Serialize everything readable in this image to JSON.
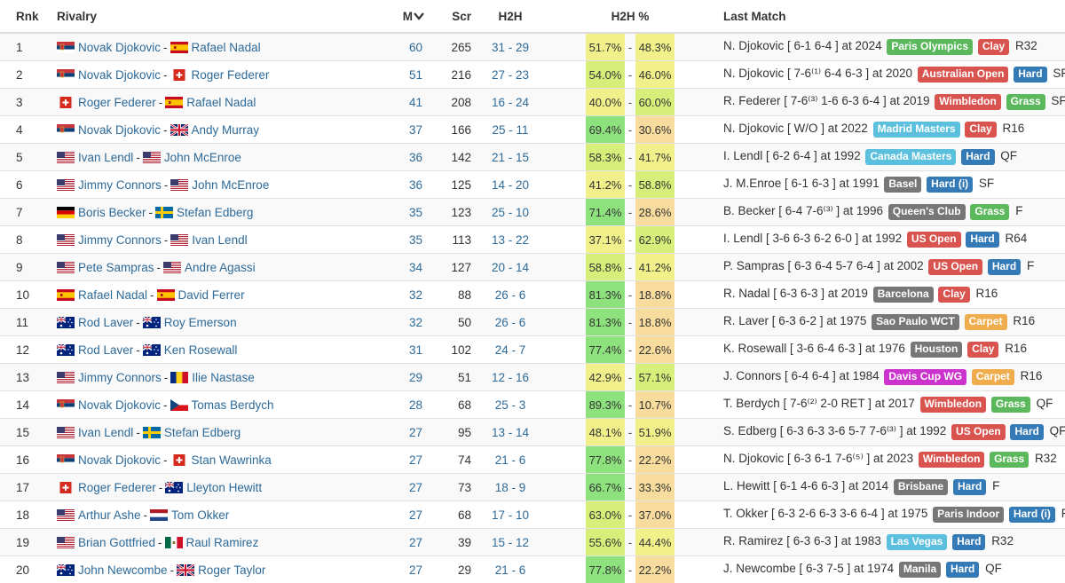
{
  "headers": {
    "rank": "Rnk",
    "rivalry": "Rivalry",
    "matches": "M",
    "score": "Scr",
    "h2h": "H2H",
    "h2h_pct": "H2H %",
    "last_match": "Last Match"
  },
  "colors": {
    "link": "#2d6a99",
    "pct_high": "#8ee27e",
    "pct_mid": "#d7ef7a",
    "pct_even": "#f1f08a",
    "pct_low": "#f8dc9e",
    "surface_clay": "#d9534f",
    "surface_hard": "#337ab7",
    "surface_grass": "#5cb85c",
    "surface_carpet": "#f0ad4e",
    "event_grand_slam": "#d9534f",
    "event_masters": "#5bc0de",
    "event_olympics": "#5cb85c",
    "event_atp500": "#777777",
    "event_davis_cup": "#cc33cc"
  },
  "rows": [
    {
      "rank": "1",
      "p1": "Novak Djokovic",
      "f1": "srb",
      "p2": "Rafael Nadal",
      "f2": "esp",
      "m": "60",
      "scr": "265",
      "h2h": "31 - 29",
      "pct1": 51.7,
      "pct2": 48.3,
      "last": {
        "pre": "N. Djokovic [ 6-1 6-4 ] at 2024",
        "event": "Paris Olympics",
        "event_color": "#5cb85c",
        "surface": "Clay",
        "surface_color": "#d9534f",
        "round": "R32"
      }
    },
    {
      "rank": "2",
      "p1": "Novak Djokovic",
      "f1": "srb",
      "p2": "Roger Federer",
      "f2": "sui",
      "m": "51",
      "scr": "216",
      "h2h": "27 - 23",
      "pct1": 54.0,
      "pct2": 46.0,
      "last": {
        "pre": "N. Djokovic [ 7-6⁽¹⁾ 6-4 6-3 ] at 2020",
        "event": "Australian Open",
        "event_color": "#d9534f",
        "surface": "Hard",
        "surface_color": "#337ab7",
        "round": "SF"
      }
    },
    {
      "rank": "3",
      "p1": "Roger Federer",
      "f1": "sui",
      "p2": "Rafael Nadal",
      "f2": "esp",
      "m": "41",
      "scr": "208",
      "h2h": "16 - 24",
      "pct1": 40.0,
      "pct2": 60.0,
      "last": {
        "pre": "R. Federer [ 7-6⁽³⁾ 1-6 6-3 6-4 ] at 2019",
        "event": "Wimbledon",
        "event_color": "#d9534f",
        "surface": "Grass",
        "surface_color": "#5cb85c",
        "round": "SF"
      }
    },
    {
      "rank": "4",
      "p1": "Novak Djokovic",
      "f1": "srb",
      "p2": "Andy Murray",
      "f2": "gbr",
      "m": "37",
      "scr": "166",
      "h2h": "25 - 11",
      "pct1": 69.4,
      "pct2": 30.6,
      "last": {
        "pre": "N. Djokovic [ W/O ] at 2022",
        "event": "Madrid Masters",
        "event_color": "#5bc0de",
        "surface": "Clay",
        "surface_color": "#d9534f",
        "round": "R16"
      }
    },
    {
      "rank": "5",
      "p1": "Ivan Lendl",
      "f1": "usa",
      "p2": "John McEnroe",
      "f2": "usa",
      "m": "36",
      "scr": "142",
      "h2h": "21 - 15",
      "pct1": 58.3,
      "pct2": 41.7,
      "last": {
        "pre": "I. Lendl [ 6-2 6-4 ] at 1992",
        "event": "Canada Masters",
        "event_color": "#5bc0de",
        "surface": "Hard",
        "surface_color": "#337ab7",
        "round": "QF"
      }
    },
    {
      "rank": "6",
      "p1": "Jimmy Connors",
      "f1": "usa",
      "p2": "John McEnroe",
      "f2": "usa",
      "m": "36",
      "scr": "125",
      "h2h": "14 - 20",
      "pct1": 41.2,
      "pct2": 58.8,
      "last": {
        "pre": "J. M.Enroe [ 6-1 6-3 ] at 1991",
        "event": "Basel",
        "event_color": "#777777",
        "surface": "Hard (i)",
        "surface_color": "#337ab7",
        "round": "SF"
      }
    },
    {
      "rank": "7",
      "p1": "Boris Becker",
      "f1": "ger",
      "p2": "Stefan Edberg",
      "f2": "swe",
      "m": "35",
      "scr": "123",
      "h2h": "25 - 10",
      "pct1": 71.4,
      "pct2": 28.6,
      "last": {
        "pre": "B. Becker [ 6-4 7-6⁽³⁾ ] at 1996",
        "event": "Queen's Club",
        "event_color": "#777777",
        "surface": "Grass",
        "surface_color": "#5cb85c",
        "round": "F"
      }
    },
    {
      "rank": "8",
      "p1": "Jimmy Connors",
      "f1": "usa",
      "p2": "Ivan Lendl",
      "f2": "usa",
      "m": "35",
      "scr": "113",
      "h2h": "13 - 22",
      "pct1": 37.1,
      "pct2": 62.9,
      "last": {
        "pre": "I. Lendl [ 3-6 6-3 6-2 6-0 ] at 1992",
        "event": "US Open",
        "event_color": "#d9534f",
        "surface": "Hard",
        "surface_color": "#337ab7",
        "round": "R64"
      }
    },
    {
      "rank": "9",
      "p1": "Pete Sampras",
      "f1": "usa",
      "p2": "Andre Agassi",
      "f2": "usa",
      "m": "34",
      "scr": "127",
      "h2h": "20 - 14",
      "pct1": 58.8,
      "pct2": 41.2,
      "last": {
        "pre": "P. Sampras [ 6-3 6-4 5-7 6-4 ] at 2002",
        "event": "US Open",
        "event_color": "#d9534f",
        "surface": "Hard",
        "surface_color": "#337ab7",
        "round": "F"
      }
    },
    {
      "rank": "10",
      "p1": "Rafael Nadal",
      "f1": "esp",
      "p2": "David Ferrer",
      "f2": "esp",
      "m": "32",
      "scr": "88",
      "h2h": "26 - 6",
      "pct1": 81.3,
      "pct2": 18.8,
      "last": {
        "pre": "R. Nadal [ 6-3 6-3 ] at 2019",
        "event": "Barcelona",
        "event_color": "#777777",
        "surface": "Clay",
        "surface_color": "#d9534f",
        "round": "R16"
      }
    },
    {
      "rank": "11",
      "p1": "Rod Laver",
      "f1": "aus",
      "p2": "Roy Emerson",
      "f2": "aus",
      "m": "32",
      "scr": "50",
      "h2h": "26 - 6",
      "pct1": 81.3,
      "pct2": 18.8,
      "last": {
        "pre": "R. Laver [ 6-3 6-2 ] at 1975",
        "event": "Sao Paulo WCT",
        "event_color": "#777777",
        "surface": "Carpet",
        "surface_color": "#f0ad4e",
        "round": "R16"
      }
    },
    {
      "rank": "12",
      "p1": "Rod Laver",
      "f1": "aus",
      "p2": "Ken Rosewall",
      "f2": "aus",
      "m": "31",
      "scr": "102",
      "h2h": "24 - 7",
      "pct1": 77.4,
      "pct2": 22.6,
      "last": {
        "pre": "K. Rosewall [ 3-6 6-4 6-3 ] at 1976",
        "event": "Houston",
        "event_color": "#777777",
        "surface": "Clay",
        "surface_color": "#d9534f",
        "round": "R16"
      }
    },
    {
      "rank": "13",
      "p1": "Jimmy Connors",
      "f1": "usa",
      "p2": "Ilie Nastase",
      "f2": "rou",
      "m": "29",
      "scr": "51",
      "h2h": "12 - 16",
      "pct1": 42.9,
      "pct2": 57.1,
      "last": {
        "pre": "J. Connors [ 6-4 6-4 ] at 1984",
        "event": "Davis Cup WG",
        "event_color": "#cc33cc",
        "surface": "Carpet",
        "surface_color": "#f0ad4e",
        "round": "R16"
      }
    },
    {
      "rank": "14",
      "p1": "Novak Djokovic",
      "f1": "srb",
      "p2": "Tomas Berdych",
      "f2": "cze",
      "m": "28",
      "scr": "68",
      "h2h": "25 - 3",
      "pct1": 89.3,
      "pct2": 10.7,
      "last": {
        "pre": "T. Berdych [ 7-6⁽²⁾ 2-0 RET ] at 2017",
        "event": "Wimbledon",
        "event_color": "#d9534f",
        "surface": "Grass",
        "surface_color": "#5cb85c",
        "round": "QF"
      }
    },
    {
      "rank": "15",
      "p1": "Ivan Lendl",
      "f1": "usa",
      "p2": "Stefan Edberg",
      "f2": "swe",
      "m": "27",
      "scr": "95",
      "h2h": "13 - 14",
      "pct1": 48.1,
      "pct2": 51.9,
      "last": {
        "pre": "S. Edberg [ 6-3 6-3 3-6 5-7 7-6⁽³⁾ ] at 1992",
        "event": "US Open",
        "event_color": "#d9534f",
        "surface": "Hard",
        "surface_color": "#337ab7",
        "round": "QF"
      }
    },
    {
      "rank": "16",
      "p1": "Novak Djokovic",
      "f1": "srb",
      "p2": "Stan Wawrinka",
      "f2": "sui",
      "m": "27",
      "scr": "74",
      "h2h": "21 - 6",
      "pct1": 77.8,
      "pct2": 22.2,
      "last": {
        "pre": "N. Djokovic [ 6-3 6-1 7-6⁽⁵⁾ ] at 2023",
        "event": "Wimbledon",
        "event_color": "#d9534f",
        "surface": "Grass",
        "surface_color": "#5cb85c",
        "round": "R32"
      }
    },
    {
      "rank": "17",
      "p1": "Roger Federer",
      "f1": "sui",
      "p2": "Lleyton Hewitt",
      "f2": "aus",
      "m": "27",
      "scr": "73",
      "h2h": "18 - 9",
      "pct1": 66.7,
      "pct2": 33.3,
      "last": {
        "pre": "L. Hewitt [ 6-1 4-6 6-3 ] at 2014",
        "event": "Brisbane",
        "event_color": "#777777",
        "surface": "Hard",
        "surface_color": "#337ab7",
        "round": "F"
      }
    },
    {
      "rank": "18",
      "p1": "Arthur Ashe",
      "f1": "usa",
      "p2": "Tom Okker",
      "f2": "ned",
      "m": "27",
      "scr": "68",
      "h2h": "17 - 10",
      "pct1": 63.0,
      "pct2": 37.0,
      "last": {
        "pre": "T. Okker [ 6-3 2-6 6-3 3-6 6-4 ] at 1975",
        "event": "Paris Indoor",
        "event_color": "#777777",
        "surface": "Hard (i)",
        "surface_color": "#337ab7",
        "round": "F"
      }
    },
    {
      "rank": "19",
      "p1": "Brian Gottfried",
      "f1": "usa",
      "p2": "Raul Ramirez",
      "f2": "mex",
      "m": "27",
      "scr": "39",
      "h2h": "15 - 12",
      "pct1": 55.6,
      "pct2": 44.4,
      "last": {
        "pre": "R. Ramirez [ 6-3 6-3 ] at 1983",
        "event": "Las Vegas",
        "event_color": "#5bc0de",
        "surface": "Hard",
        "surface_color": "#337ab7",
        "round": "R32"
      }
    },
    {
      "rank": "20",
      "p1": "John Newcombe",
      "f1": "aus",
      "p2": "Roger Taylor",
      "f2": "gbr",
      "m": "27",
      "scr": "29",
      "h2h": "21 - 6",
      "pct1": 77.8,
      "pct2": 22.2,
      "last": {
        "pre": "J. Newcombe [ 6-3 7-5 ] at 1974",
        "event": "Manila",
        "event_color": "#777777",
        "surface": "Hard",
        "surface_color": "#337ab7",
        "round": "QF"
      }
    }
  ]
}
